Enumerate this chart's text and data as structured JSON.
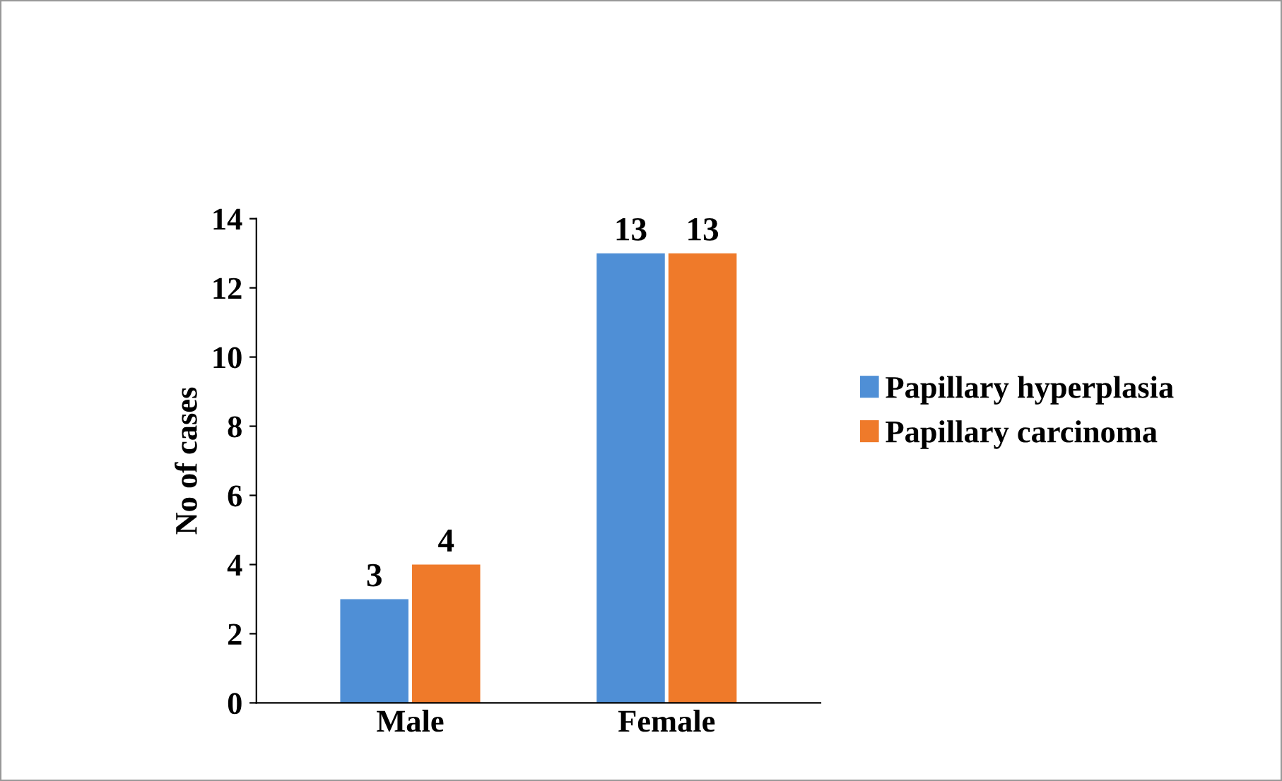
{
  "chart_data": {
    "type": "bar",
    "ylabel": "No of cases",
    "categories": [
      "Male",
      "Female"
    ],
    "series": [
      {
        "name": "Papillary hyperplasia",
        "color": "#4f8fd6",
        "values": [
          3,
          13
        ]
      },
      {
        "name": "Papillary carcinoma",
        "color": "#ef7a2a",
        "values": [
          4,
          13
        ]
      }
    ],
    "ylim": [
      0,
      14
    ],
    "yticks": [
      0,
      2,
      4,
      6,
      8,
      10,
      12,
      14
    ],
    "grid": false,
    "legend": "right",
    "data_labels": true
  }
}
